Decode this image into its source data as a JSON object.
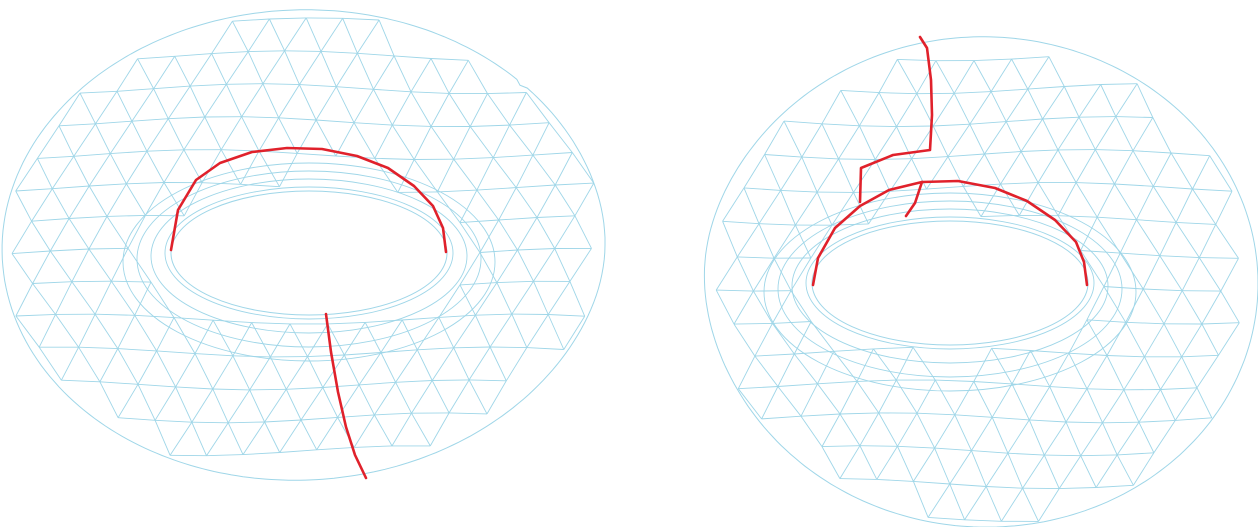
{
  "figure": {
    "subject": "double-torus-mesh",
    "colors": {
      "mesh": "#9fd6e8",
      "cut_curves": "#e0212b",
      "background": "#ffffff"
    },
    "cut_curves": [
      {
        "name": "left-hole-inner-loop-arc"
      },
      {
        "name": "left-tube-meridian-cut"
      },
      {
        "name": "right-hole-inner-loop-arc"
      },
      {
        "name": "right-top-meridian-cut"
      }
    ]
  }
}
